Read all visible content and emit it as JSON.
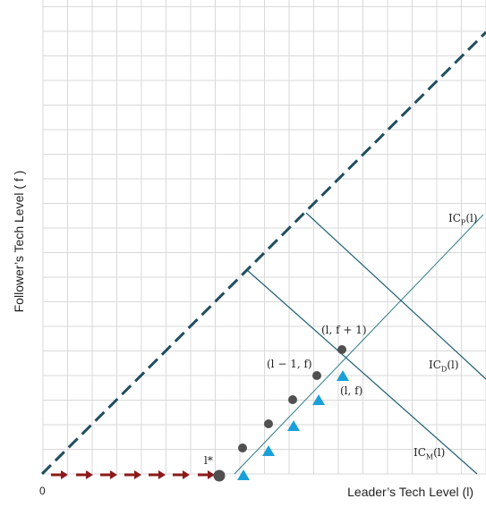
{
  "axes": {
    "y_label": "Follower’s Tech Level ( f )",
    "x_label": "Leader’s Tech Level (l)",
    "origin_label": "0"
  },
  "labels": {
    "l_star": "l*",
    "ic_p": {
      "main": "IC",
      "sub": "P",
      "arg": "(l)"
    },
    "ic_d": {
      "main": "IC",
      "sub": "D",
      "arg": "(l)"
    },
    "ic_m": {
      "main": "IC",
      "sub": "M",
      "arg": "(l)"
    },
    "point_l_f1": "(l, f + 1)",
    "point_lm1_f": "(l − 1, f)",
    "point_l_f": "(l, f)"
  },
  "colors": {
    "grid": "#d9d9d9",
    "dashed": "#1f4e5f",
    "lines": "#1f5f73",
    "arrows": "#8b1a1a",
    "dots": "#505050",
    "triangles": "#1aa0d8"
  }
}
